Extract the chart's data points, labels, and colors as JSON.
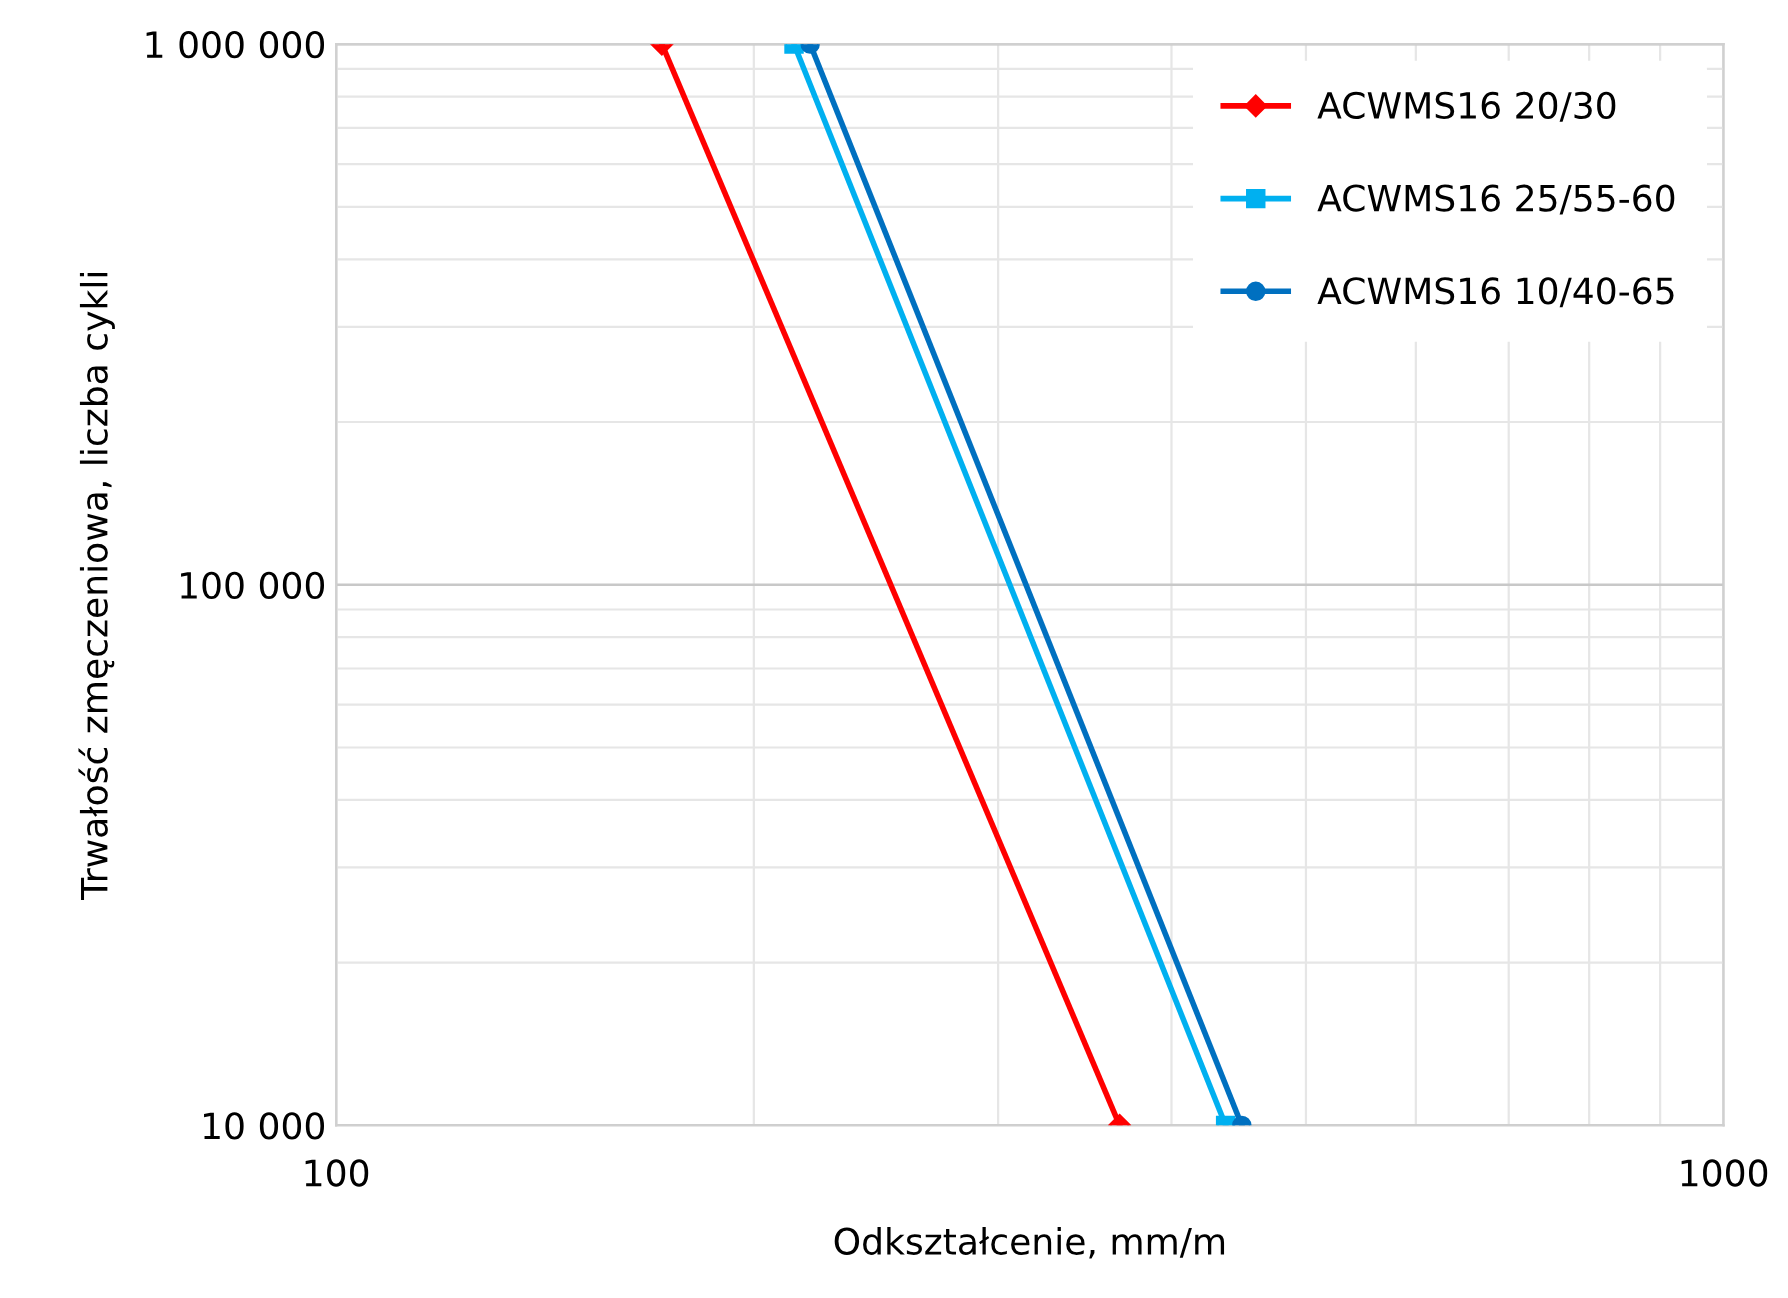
{
  "chart_data": {
    "type": "line",
    "xlabel": "Odkształcenie, mm/m",
    "ylabel": "Trwałość zmęczeniowa, liczba cykli",
    "log": "xy",
    "grid": true,
    "legend": "top right",
    "line_style": "solid",
    "xlim": [
      100,
      1000
    ],
    "xticks": [
      100,
      1000
    ],
    "ylim": [
      10000,
      1000000
    ],
    "yticks": [
      {
        "value": 10000,
        "label": "10 000"
      },
      {
        "value": 100000,
        "label": "100 000"
      },
      {
        "value": 1000000,
        "label": "1 000 000"
      }
    ],
    "series": [
      {
        "name": "ACWMS16 20/30",
        "color": "#ff0000",
        "marker": "diamond",
        "x": [
          171.7,
          367
        ],
        "values": [
          1000000,
          10000
        ]
      },
      {
        "name": "ACWMS16 25/55-60",
        "color": "#00b0f0",
        "marker": "square",
        "x": [
          213.8,
          437.6
        ],
        "values": [
          1000000,
          10000
        ]
      },
      {
        "name": "ACWMS16 10/40-65",
        "color": "#0070c0",
        "marker": "circle",
        "x": [
          219.6,
          449.5
        ],
        "values": [
          1000000,
          10000
        ]
      }
    ]
  }
}
